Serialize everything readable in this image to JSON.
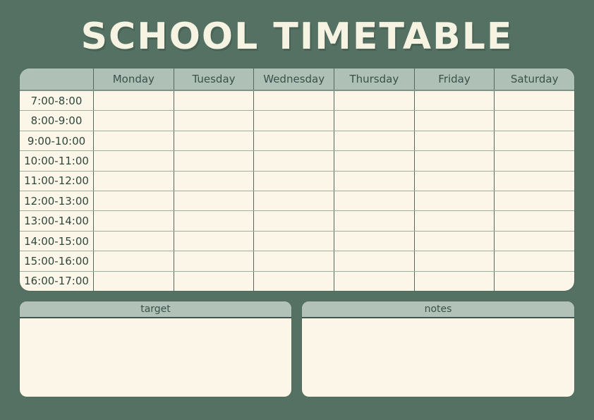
{
  "title": "SCHOOL TIMETABLE",
  "timetable": {
    "corner_label": "",
    "days": [
      "Monday",
      "Tuesday",
      "Wednesday",
      "Thursday",
      "Friday",
      "Saturday"
    ],
    "time_slots": [
      "7:00-8:00",
      "8:00-9:00",
      "9:00-10:00",
      "10:00-11:00",
      "11:00-12:00",
      "12:00-13:00",
      "13:00-14:00",
      "14:00-15:00",
      "15:00-16:00",
      "16:00-17:00"
    ],
    "cell_content": ""
  },
  "panels": {
    "target": {
      "label": "target",
      "content": ""
    },
    "notes": {
      "label": "notes",
      "content": ""
    }
  },
  "colors": {
    "page_background": "#547163",
    "title_text": "#F7F3E2",
    "table_header_bg": "#AFC0B6",
    "table_header_text": "#39514A",
    "cell_bg": "#FBF6E7",
    "row_line": "#9EAE9F",
    "column_line": "#54685D",
    "panel_header_bg": "#B2C2B8",
    "panel_header_line": "#3F574C"
  }
}
